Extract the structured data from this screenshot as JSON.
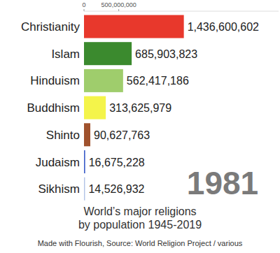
{
  "chart_data": {
    "type": "bar",
    "orientation": "horizontal",
    "title": "World’s major religions",
    "subtitle": "by population 1945-2019",
    "source": "Made with Flourish, Source: World Religion Project / various",
    "annotations": [
      {
        "text": "1981"
      }
    ],
    "categories": [
      "Christianity",
      "Islam",
      "Hinduism",
      "Buddhism",
      "Shinto",
      "Judaism",
      "Sikhism"
    ],
    "values": [
      1436600602,
      685903823,
      562417186,
      313625979,
      90627763,
      16675228,
      14526932
    ],
    "value_labels": [
      "1,436,600,602",
      "685,903,823",
      "562,417,186",
      "313,625,979",
      "90,627,763",
      "16,675,228",
      "14,526,932"
    ],
    "colors": [
      "#e8382c",
      "#3b8a2e",
      "#9fcd6c",
      "#f4f44a",
      "#a0522d",
      "#3d5fc9",
      "#b3c4e6"
    ],
    "xlim": [
      0,
      2800000000
    ],
    "xticks": [
      0,
      {
        "value": 500000000,
        "label": "500,000,000"
      }
    ],
    "data_labels": true,
    "grid": false
  }
}
